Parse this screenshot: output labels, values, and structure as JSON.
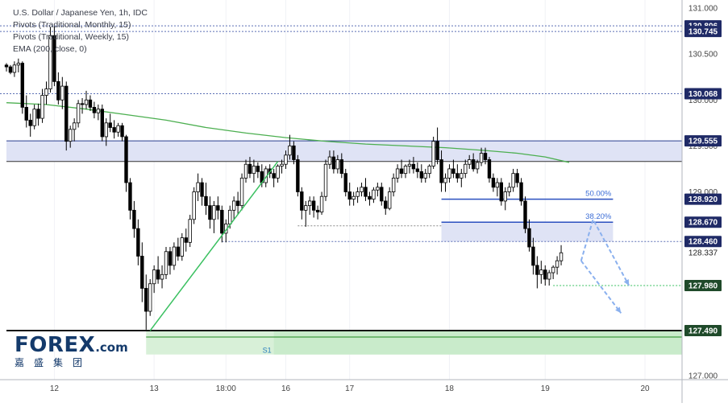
{
  "header": {
    "legend": [
      "U.S. Dollar / Japanese Yen, 1h, IDC",
      "Pivots (Traditional, Monthly, 15)",
      "Pivots (Traditional, Weekly, 15)",
      "EMA (200, close, 0)"
    ]
  },
  "logo": {
    "word": "FOREX",
    "suffix": ".com",
    "chinese": "嘉盛集团"
  },
  "colors": {
    "up_candle": "#ffffff",
    "down_candle": "#000000",
    "candle_outline": "#000000",
    "ema": "#4caf50",
    "pivot_dotted": "#5b6fb5",
    "resistance_zone": "#dfe3f5",
    "resistance_border": "#2a3f8f",
    "support_zone": "#d8f0d8",
    "support_line": "#1f8a1f",
    "fib_zone": "#dfe3f5",
    "fib_line": "#2a4fbf",
    "fib_label": "#3a6cd6",
    "trendline": "#3ac060",
    "projection_arrow": "#8ab0ee",
    "target_line": "#3ac060"
  },
  "chart_data": {
    "type": "candlestick",
    "symbol": "USDJPY",
    "interval": "1h",
    "ylim": [
      127.0,
      131.0
    ],
    "y_ticks": [
      {
        "value": 131.0,
        "label": "131.000"
      },
      {
        "value": 130.5,
        "label": "130.500"
      },
      {
        "value": 130.0,
        "label": "130.000"
      },
      {
        "value": 129.5,
        "label": "129.500"
      },
      {
        "value": 129.0,
        "label": "129.000"
      },
      {
        "value": 127.0,
        "label": "127.000"
      }
    ],
    "x_ticks": [
      {
        "index": 12,
        "label": "12"
      },
      {
        "index": 37,
        "label": "13"
      },
      {
        "index": 55,
        "label": "18:00"
      },
      {
        "index": 70,
        "label": "16"
      },
      {
        "index": 86,
        "label": "17"
      },
      {
        "index": 111,
        "label": "18"
      },
      {
        "index": 135,
        "label": "19"
      },
      {
        "index": 160,
        "label": "20"
      }
    ],
    "current_price": {
      "value": 128.337,
      "label": "128.337"
    },
    "price_labels": [
      {
        "value": 130.806,
        "label": "130.806",
        "style": "dotted"
      },
      {
        "value": 130.745,
        "label": "130.745",
        "style": "dotted"
      },
      {
        "value": 130.068,
        "label": "130.068",
        "style": "dotted"
      },
      {
        "value": 129.555,
        "label": "129.555",
        "style": "solid"
      },
      {
        "value": 128.92,
        "label": "128.920",
        "style": "fib"
      },
      {
        "value": 128.67,
        "label": "128.670",
        "style": "fib"
      },
      {
        "value": 128.46,
        "label": "128.460",
        "style": "dotted"
      },
      {
        "value": 127.98,
        "label": "127.980",
        "style": "target"
      },
      {
        "value": 127.49,
        "label": "127.490",
        "style": "support"
      }
    ],
    "resistance_zone": {
      "top": 129.555,
      "bottom": 129.33,
      "start_index": 0,
      "end_index": 166
    },
    "support_zone": {
      "top": 127.49,
      "bottom": 127.23,
      "start_index": 35,
      "end_index": 166,
      "label": "S1",
      "label_index": 67
    },
    "fib_levels": [
      {
        "label": "50.00%",
        "value": 128.92,
        "start_index": 109,
        "end_index": 152
      },
      {
        "label": "38.20%",
        "value": 128.67,
        "start_index": 109,
        "end_index": 152
      }
    ],
    "fib_zone": {
      "top": 128.67,
      "bottom": 128.46,
      "start_index": 109,
      "end_index": 152
    },
    "ema_200": [
      [
        0,
        129.97
      ],
      [
        10,
        129.95
      ],
      [
        20,
        129.9
      ],
      [
        30,
        129.84
      ],
      [
        40,
        129.78
      ],
      [
        50,
        129.7
      ],
      [
        60,
        129.64
      ],
      [
        70,
        129.59
      ],
      [
        80,
        129.55
      ],
      [
        90,
        129.52
      ],
      [
        100,
        129.5
      ],
      [
        110,
        129.48
      ],
      [
        120,
        129.45
      ],
      [
        128,
        129.42
      ],
      [
        135,
        129.38
      ],
      [
        141,
        129.32
      ]
    ],
    "trendline": {
      "from": [
        36,
        127.49
      ],
      "to": [
        68,
        129.33
      ]
    },
    "projections": [
      {
        "from": [
          144,
          128.25
        ],
        "via": [
          147,
          128.7
        ],
        "to": [
          156,
          127.98
        ]
      },
      {
        "from": [
          144,
          128.25
        ],
        "to": [
          154,
          127.68
        ]
      }
    ],
    "candles": [
      [
        130.38,
        130.4,
        130.31,
        130.36
      ],
      [
        130.36,
        130.38,
        130.28,
        130.3
      ],
      [
        130.3,
        130.42,
        130.25,
        130.38
      ],
      [
        130.38,
        130.45,
        130.3,
        130.4
      ],
      [
        130.4,
        130.42,
        129.85,
        129.92
      ],
      [
        129.92,
        130.05,
        129.7,
        129.78
      ],
      [
        129.78,
        129.85,
        129.6,
        129.72
      ],
      [
        129.72,
        129.95,
        129.68,
        129.9
      ],
      [
        129.9,
        129.96,
        129.72,
        129.8
      ],
      [
        129.8,
        130.12,
        129.75,
        130.05
      ],
      [
        130.05,
        130.2,
        129.95,
        130.12
      ],
      [
        130.12,
        130.79,
        130.08,
        130.7
      ],
      [
        130.7,
        130.8,
        130.15,
        130.2
      ],
      [
        130.2,
        130.3,
        129.95,
        130.0
      ],
      [
        130.0,
        130.25,
        129.9,
        130.15
      ],
      [
        130.15,
        130.2,
        129.45,
        129.55
      ],
      [
        129.55,
        129.72,
        129.48,
        129.68
      ],
      [
        129.68,
        129.8,
        129.55,
        129.75
      ],
      [
        129.75,
        130.0,
        129.7,
        129.96
      ],
      [
        129.96,
        130.02,
        129.85,
        129.95
      ],
      [
        129.95,
        130.1,
        129.9,
        130.0
      ],
      [
        130.0,
        130.05,
        129.88,
        129.92
      ],
      [
        129.92,
        129.98,
        129.8,
        129.86
      ],
      [
        129.86,
        129.95,
        129.78,
        129.9
      ],
      [
        129.9,
        129.95,
        129.55,
        129.6
      ],
      [
        129.6,
        129.8,
        129.5,
        129.75
      ],
      [
        129.75,
        129.85,
        129.65,
        129.7
      ],
      [
        129.7,
        129.78,
        129.58,
        129.65
      ],
      [
        129.65,
        129.75,
        129.6,
        129.72
      ],
      [
        129.72,
        129.75,
        129.55,
        129.6
      ],
      [
        129.6,
        129.62,
        129.0,
        129.1
      ],
      [
        129.1,
        129.15,
        128.7,
        128.8
      ],
      [
        128.8,
        128.9,
        128.5,
        128.6
      ],
      [
        128.6,
        128.7,
        128.2,
        128.3
      ],
      [
        128.3,
        128.45,
        127.8,
        127.95
      ],
      [
        127.95,
        128.1,
        127.5,
        127.7
      ],
      [
        127.7,
        128.05,
        127.65,
        128.0
      ],
      [
        128.0,
        128.2,
        127.9,
        128.15
      ],
      [
        128.15,
        128.3,
        128.0,
        128.05
      ],
      [
        128.05,
        128.2,
        127.95,
        128.1
      ],
      [
        128.1,
        128.4,
        128.05,
        128.35
      ],
      [
        128.35,
        128.4,
        128.1,
        128.2
      ],
      [
        128.2,
        128.45,
        128.15,
        128.4
      ],
      [
        128.4,
        128.5,
        128.25,
        128.3
      ],
      [
        128.3,
        128.55,
        128.25,
        128.5
      ],
      [
        128.5,
        128.6,
        128.35,
        128.45
      ],
      [
        128.45,
        128.75,
        128.4,
        128.7
      ],
      [
        128.7,
        129.05,
        128.65,
        129.0
      ],
      [
        129.0,
        129.2,
        128.9,
        129.1
      ],
      [
        129.1,
        129.15,
        128.85,
        128.95
      ],
      [
        128.95,
        129.1,
        128.75,
        128.85
      ],
      [
        128.85,
        128.95,
        128.6,
        128.7
      ],
      [
        128.7,
        128.9,
        128.55,
        128.85
      ],
      [
        128.85,
        128.95,
        128.7,
        128.8
      ],
      [
        128.8,
        128.85,
        128.45,
        128.55
      ],
      [
        128.55,
        128.7,
        128.45,
        128.65
      ],
      [
        128.65,
        128.85,
        128.6,
        128.8
      ],
      [
        128.8,
        128.95,
        128.7,
        128.9
      ],
      [
        128.9,
        129.0,
        128.75,
        128.85
      ],
      [
        128.85,
        129.2,
        128.8,
        129.15
      ],
      [
        129.15,
        129.35,
        129.1,
        129.3
      ],
      [
        129.3,
        129.38,
        129.15,
        129.2
      ],
      [
        129.2,
        129.35,
        129.1,
        129.28
      ],
      [
        129.28,
        129.32,
        129.15,
        129.22
      ],
      [
        129.22,
        129.3,
        129.05,
        129.1
      ],
      [
        129.1,
        129.28,
        129.05,
        129.25
      ],
      [
        129.25,
        129.3,
        129.15,
        129.2
      ],
      [
        129.2,
        129.25,
        129.05,
        129.15
      ],
      [
        129.15,
        129.3,
        129.1,
        129.28
      ],
      [
        129.28,
        129.35,
        129.2,
        129.3
      ],
      [
        129.3,
        129.45,
        129.25,
        129.4
      ],
      [
        129.4,
        129.62,
        129.35,
        129.5
      ],
      [
        129.5,
        129.55,
        129.3,
        129.35
      ],
      [
        129.35,
        129.4,
        128.95,
        129.0
      ],
      [
        129.0,
        129.05,
        128.7,
        128.8
      ],
      [
        128.8,
        128.9,
        128.62,
        128.85
      ],
      [
        128.85,
        128.95,
        128.75,
        128.9
      ],
      [
        128.9,
        128.95,
        128.72,
        128.8
      ],
      [
        128.8,
        128.85,
        128.7,
        128.78
      ],
      [
        128.78,
        129.0,
        128.75,
        128.95
      ],
      [
        128.95,
        129.35,
        128.9,
        129.3
      ],
      [
        129.3,
        129.45,
        129.25,
        129.38
      ],
      [
        129.38,
        129.45,
        129.2,
        129.25
      ],
      [
        129.25,
        129.4,
        129.2,
        129.35
      ],
      [
        129.35,
        129.42,
        129.15,
        129.2
      ],
      [
        129.2,
        129.25,
        128.95,
        129.0
      ],
      [
        129.0,
        129.1,
        128.85,
        128.92
      ],
      [
        128.92,
        129.0,
        128.85,
        128.95
      ],
      [
        128.95,
        129.05,
        128.88,
        129.0
      ],
      [
        129.0,
        129.1,
        128.95,
        129.05
      ],
      [
        129.05,
        129.15,
        128.9,
        128.95
      ],
      [
        128.95,
        129.0,
        128.85,
        128.92
      ],
      [
        128.92,
        129.05,
        128.88,
        129.02
      ],
      [
        129.02,
        129.1,
        128.95,
        129.05
      ],
      [
        129.05,
        129.1,
        128.85,
        128.9
      ],
      [
        128.9,
        128.95,
        128.75,
        128.82
      ],
      [
        128.82,
        129.05,
        128.8,
        129.0
      ],
      [
        129.0,
        129.2,
        128.95,
        129.15
      ],
      [
        129.15,
        129.3,
        129.1,
        129.25
      ],
      [
        129.25,
        129.35,
        129.15,
        129.2
      ],
      [
        129.2,
        129.3,
        129.15,
        129.28
      ],
      [
        129.28,
        129.35,
        129.2,
        129.3
      ],
      [
        129.3,
        129.38,
        129.2,
        129.25
      ],
      [
        129.25,
        129.32,
        129.15,
        129.22
      ],
      [
        129.22,
        129.3,
        129.1,
        129.15
      ],
      [
        129.15,
        129.25,
        129.1,
        129.2
      ],
      [
        129.2,
        129.3,
        129.15,
        129.28
      ],
      [
        129.28,
        129.6,
        129.25,
        129.55
      ],
      [
        129.55,
        129.7,
        129.3,
        129.35
      ],
      [
        129.35,
        129.45,
        129.0,
        129.1
      ],
      [
        129.1,
        129.2,
        129.0,
        129.15
      ],
      [
        129.15,
        129.3,
        129.1,
        129.25
      ],
      [
        129.25,
        129.35,
        129.15,
        129.2
      ],
      [
        129.2,
        129.3,
        129.1,
        129.15
      ],
      [
        129.15,
        129.25,
        129.05,
        129.2
      ],
      [
        129.2,
        129.35,
        129.15,
        129.3
      ],
      [
        129.3,
        129.4,
        129.25,
        129.35
      ],
      [
        129.35,
        129.42,
        129.22,
        129.25
      ],
      [
        129.25,
        129.35,
        129.2,
        129.32
      ],
      [
        129.32,
        129.48,
        129.28,
        129.42
      ],
      [
        129.42,
        129.48,
        129.3,
        129.35
      ],
      [
        129.35,
        129.38,
        129.1,
        129.15
      ],
      [
        129.15,
        129.2,
        129.0,
        129.05
      ],
      [
        129.05,
        129.15,
        128.95,
        129.1
      ],
      [
        129.1,
        129.15,
        128.85,
        128.9
      ],
      [
        128.9,
        129.05,
        128.8,
        129.0
      ],
      [
        129.0,
        129.1,
        128.95,
        129.05
      ],
      [
        129.05,
        129.25,
        129.0,
        129.2
      ],
      [
        129.2,
        129.25,
        129.05,
        129.1
      ],
      [
        129.1,
        129.15,
        128.85,
        128.9
      ],
      [
        128.9,
        128.95,
        128.55,
        128.6
      ],
      [
        128.6,
        128.7,
        128.35,
        128.4
      ],
      [
        128.4,
        128.5,
        128.1,
        128.2
      ],
      [
        128.2,
        128.3,
        127.95,
        128.1
      ],
      [
        128.1,
        128.25,
        128.0,
        128.15
      ],
      [
        128.15,
        128.2,
        127.98,
        128.05
      ],
      [
        128.05,
        128.15,
        127.98,
        128.12
      ],
      [
        128.12,
        128.2,
        128.05,
        128.18
      ],
      [
        128.18,
        128.3,
        128.1,
        128.25
      ],
      [
        128.25,
        128.42,
        128.2,
        128.337
      ]
    ]
  }
}
